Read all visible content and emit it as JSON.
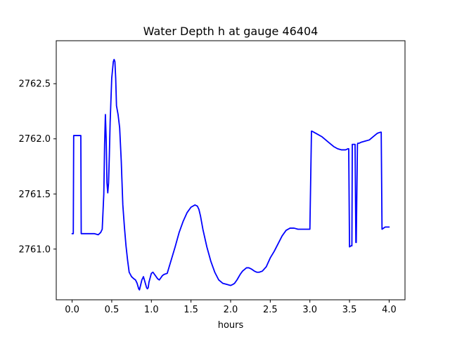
{
  "chart_data": {
    "type": "line",
    "title": "Water Depth h at gauge 46404",
    "xlabel": "hours",
    "ylabel": "",
    "xlim": [
      -0.2,
      4.2
    ],
    "ylim": [
      2760.54,
      2762.89
    ],
    "grid": false,
    "legend": "none",
    "xticks": [
      {
        "value": 0.0,
        "label": "0.0"
      },
      {
        "value": 0.5,
        "label": "0.5"
      },
      {
        "value": 1.0,
        "label": "1.0"
      },
      {
        "value": 1.5,
        "label": "1.5"
      },
      {
        "value": 2.0,
        "label": "2.0"
      },
      {
        "value": 2.5,
        "label": "2.5"
      },
      {
        "value": 3.0,
        "label": "3.0"
      },
      {
        "value": 3.5,
        "label": "3.5"
      },
      {
        "value": 4.0,
        "label": "4.0"
      }
    ],
    "yticks": [
      {
        "value": 2761.0,
        "label": "2761.0"
      },
      {
        "value": 2761.5,
        "label": "2761.5"
      },
      {
        "value": 2762.0,
        "label": "2762.0"
      },
      {
        "value": 2762.5,
        "label": "2762.5"
      }
    ],
    "series": [
      {
        "color": "#0000ff",
        "x": [
          0.0,
          0.015,
          0.02,
          0.05,
          0.1,
          0.11,
          0.115,
          0.2,
          0.28,
          0.33,
          0.36,
          0.38,
          0.4,
          0.41,
          0.42,
          0.43,
          0.44,
          0.45,
          0.46,
          0.47,
          0.48,
          0.5,
          0.52,
          0.53,
          0.54,
          0.55,
          0.56,
          0.58,
          0.6,
          0.62,
          0.64,
          0.66,
          0.68,
          0.7,
          0.72,
          0.75,
          0.78,
          0.8,
          0.82,
          0.84,
          0.85,
          0.88,
          0.9,
          0.92,
          0.94,
          0.95,
          0.96,
          0.97,
          1.0,
          1.02,
          1.04,
          1.06,
          1.08,
          1.1,
          1.12,
          1.14,
          1.16,
          1.2,
          1.25,
          1.3,
          1.35,
          1.4,
          1.45,
          1.5,
          1.55,
          1.58,
          1.6,
          1.62,
          1.65,
          1.7,
          1.75,
          1.8,
          1.85,
          1.9,
          1.95,
          2.0,
          2.03,
          2.05,
          2.08,
          2.12,
          2.15,
          2.2,
          2.23,
          2.26,
          2.3,
          2.33,
          2.36,
          2.4,
          2.45,
          2.5,
          2.55,
          2.6,
          2.65,
          2.7,
          2.75,
          2.8,
          2.85,
          2.9,
          2.95,
          3.0,
          3.02,
          3.025,
          3.05,
          3.1,
          3.15,
          3.2,
          3.25,
          3.3,
          3.35,
          3.4,
          3.45,
          3.48,
          3.49,
          3.5,
          3.52,
          3.53,
          3.535,
          3.56,
          3.57,
          3.58,
          3.585,
          3.6,
          3.605,
          3.62,
          3.65,
          3.7,
          3.75,
          3.8,
          3.85,
          3.89,
          3.9,
          3.91,
          3.95,
          4.0
        ],
        "y": [
          2761.14,
          2761.14,
          2762.03,
          2762.03,
          2762.03,
          2762.03,
          2761.14,
          2761.14,
          2761.14,
          2761.13,
          2761.15,
          2761.18,
          2761.5,
          2761.95,
          2762.22,
          2762.0,
          2761.6,
          2761.51,
          2761.6,
          2761.85,
          2762.15,
          2762.55,
          2762.7,
          2762.72,
          2762.7,
          2762.55,
          2762.3,
          2762.22,
          2762.1,
          2761.8,
          2761.4,
          2761.2,
          2761.03,
          2760.9,
          2760.79,
          2760.75,
          2760.73,
          2760.72,
          2760.69,
          2760.64,
          2760.63,
          2760.72,
          2760.75,
          2760.7,
          2760.65,
          2760.64,
          2760.65,
          2760.7,
          2760.78,
          2760.79,
          2760.77,
          2760.75,
          2760.73,
          2760.72,
          2760.74,
          2760.76,
          2760.77,
          2760.78,
          2760.9,
          2761.02,
          2761.15,
          2761.25,
          2761.33,
          2761.38,
          2761.4,
          2761.39,
          2761.36,
          2761.3,
          2761.18,
          2761.02,
          2760.89,
          2760.79,
          2760.72,
          2760.69,
          2760.68,
          2760.67,
          2760.68,
          2760.69,
          2760.72,
          2760.77,
          2760.8,
          2760.83,
          2760.83,
          2760.82,
          2760.8,
          2760.79,
          2760.79,
          2760.8,
          2760.84,
          2760.92,
          2760.98,
          2761.05,
          2761.12,
          2761.17,
          2761.19,
          2761.19,
          2761.18,
          2761.18,
          2761.18,
          2761.18,
          2762.07,
          2762.07,
          2762.06,
          2762.04,
          2762.02,
          2761.99,
          2761.96,
          2761.93,
          2761.91,
          2761.9,
          2761.9,
          2761.91,
          2761.91,
          2761.02,
          2761.03,
          2761.03,
          2761.95,
          2761.95,
          2761.95,
          2761.06,
          2761.06,
          2761.95,
          2761.96,
          2761.96,
          2761.97,
          2761.98,
          2761.99,
          2762.02,
          2762.05,
          2762.06,
          2762.06,
          2761.18,
          2761.2,
          2761.2
        ]
      }
    ]
  }
}
